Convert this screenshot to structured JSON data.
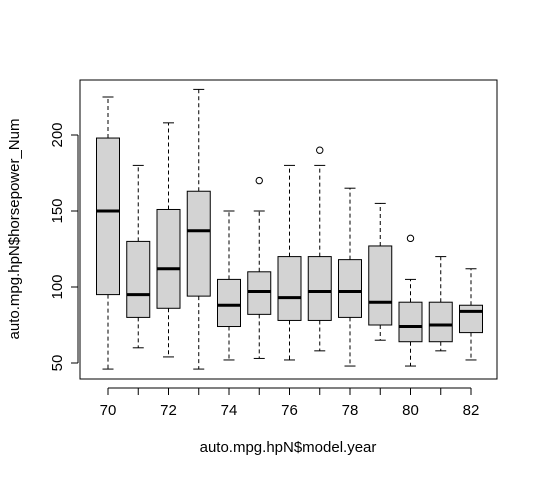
{
  "chart_data": {
    "type": "boxplot",
    "title": "",
    "xlabel": "auto.mpg.hpN$model.year",
    "ylabel": "auto.mpg.hpN$horsepower_Num",
    "ylim": [
      40,
      235
    ],
    "yticks": [
      50,
      100,
      150,
      200
    ],
    "categories": [
      "70",
      "71",
      "72",
      "73",
      "74",
      "75",
      "76",
      "77",
      "78",
      "79",
      "80",
      "81",
      "82"
    ],
    "x_tick_labels_shown": [
      "70",
      "72",
      "74",
      "76",
      "78",
      "80",
      "82"
    ],
    "box_fill": "#d3d3d3",
    "boxes": [
      {
        "category": "70",
        "whisker_low": 46,
        "q1": 95,
        "median": 150,
        "q3": 198,
        "whisker_high": 225,
        "outliers": []
      },
      {
        "category": "71",
        "whisker_low": 60,
        "q1": 80,
        "median": 95,
        "q3": 130,
        "whisker_high": 180,
        "outliers": []
      },
      {
        "category": "72",
        "whisker_low": 54,
        "q1": 86,
        "median": 112,
        "q3": 151,
        "whisker_high": 208,
        "outliers": []
      },
      {
        "category": "73",
        "whisker_low": 46,
        "q1": 94,
        "median": 137,
        "q3": 163,
        "whisker_high": 230,
        "outliers": []
      },
      {
        "category": "74",
        "whisker_low": 52,
        "q1": 74,
        "median": 88,
        "q3": 105,
        "whisker_high": 150,
        "outliers": []
      },
      {
        "category": "75",
        "whisker_low": 53,
        "q1": 82,
        "median": 97,
        "q3": 110,
        "whisker_high": 150,
        "outliers": [
          170
        ]
      },
      {
        "category": "76",
        "whisker_low": 52,
        "q1": 78,
        "median": 93,
        "q3": 120,
        "whisker_high": 180,
        "outliers": []
      },
      {
        "category": "77",
        "whisker_low": 58,
        "q1": 78,
        "median": 97,
        "q3": 120,
        "whisker_high": 180,
        "outliers": [
          190
        ]
      },
      {
        "category": "78",
        "whisker_low": 48,
        "q1": 80,
        "median": 97,
        "q3": 118,
        "whisker_high": 165,
        "outliers": []
      },
      {
        "category": "79",
        "whisker_low": 65,
        "q1": 75,
        "median": 90,
        "q3": 127,
        "whisker_high": 155,
        "outliers": []
      },
      {
        "category": "80",
        "whisker_low": 48,
        "q1": 64,
        "median": 74,
        "q3": 90,
        "whisker_high": 105,
        "outliers": [
          132
        ]
      },
      {
        "category": "81",
        "whisker_low": 58,
        "q1": 64,
        "median": 75,
        "q3": 90,
        "whisker_high": 120,
        "outliers": []
      },
      {
        "category": "82",
        "whisker_low": 52,
        "q1": 70,
        "median": 84,
        "q3": 88,
        "whisker_high": 112,
        "outliers": []
      }
    ]
  }
}
